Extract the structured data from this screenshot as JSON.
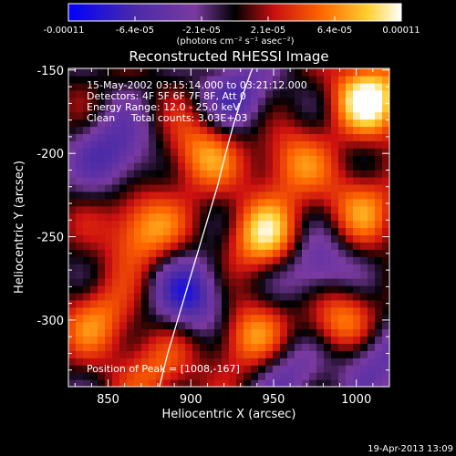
{
  "chart_data": {
    "type": "heatmap",
    "title": "Reconstructed RHESSI Image",
    "xlabel": "Heliocentric X (arcsec)",
    "ylabel": "Heliocentric Y (arcsec)",
    "xlim": [
      826,
      1020
    ],
    "ylim": [
      -340,
      -149
    ],
    "x_ticks": [
      "850",
      "900",
      "950",
      "1000"
    ],
    "x_tick_values": [
      850,
      900,
      950,
      1000
    ],
    "y_ticks": [
      "-150",
      "-200",
      "-250",
      "-300"
    ],
    "y_tick_values": [
      -150,
      -200,
      -250,
      -300
    ],
    "colorbar": {
      "tick_labels": [
        "-0.00011",
        "-6.4e-05",
        "-2.1e-05",
        "2.1e-05",
        "6.4e-05",
        "0.00011"
      ],
      "range": [
        -0.00011,
        0.00011
      ],
      "unit_label": "(photons cm⁻² s⁻¹ asec⁻²)",
      "colors": [
        "#0000ff",
        "#4a2aa8",
        "#7a3aa0",
        "#000000",
        "#cc1010",
        "#ff6600",
        "#ffd030",
        "#ffffff"
      ]
    },
    "annotations": [
      "15-May-2002 03:15:14.000 to 03:21:12.000",
      "Detectors: 4F 5F 6F 7F 8F, Att 0",
      "Energy Range: 12.0 - 25.0 keV",
      "Clean     Total counts: 3.03E+03"
    ],
    "peak_label": "Position of Peak = [1008,-167]",
    "peak": [
      1008,
      -167
    ],
    "limb_curve": {
      "x": [
        881,
        886,
        892,
        898,
        904,
        910,
        916,
        921,
        926,
        931,
        936,
        941
      ],
      "y": [
        -340,
        -320,
        -300,
        -280,
        -260,
        -240,
        -220,
        -200,
        -182,
        -166,
        -152,
        -140
      ]
    },
    "sources": [
      {
        "x": 1008,
        "y": -167,
        "v": 0.00011
      },
      {
        "x": 945,
        "y": -250,
        "v": 9e-05
      },
      {
        "x": 990,
        "y": -300,
        "v": 8e-05
      },
      {
        "x": 870,
        "y": -245,
        "v": 8e-05
      },
      {
        "x": 905,
        "y": -200,
        "v": 7e-05
      },
      {
        "x": 935,
        "y": -310,
        "v": 7e-05
      },
      {
        "x": 960,
        "y": -205,
        "v": 6e-05
      },
      {
        "x": 845,
        "y": -300,
        "v": 6e-05
      },
      {
        "x": 1003,
        "y": -232,
        "v": 6e-05
      },
      {
        "x": 880,
        "y": -330,
        "v": 5e-05
      },
      {
        "x": 900,
        "y": -285,
        "v": -8e-05
      },
      {
        "x": 855,
        "y": -200,
        "v": -7e-05
      },
      {
        "x": 975,
        "y": -270,
        "v": -7e-05
      },
      {
        "x": 1010,
        "y": -320,
        "v": -6e-05
      },
      {
        "x": 930,
        "y": -165,
        "v": -6e-05
      },
      {
        "x": 960,
        "y": -330,
        "v": -5e-05
      }
    ]
  },
  "footer_date": "19-Apr-2013 13:09"
}
